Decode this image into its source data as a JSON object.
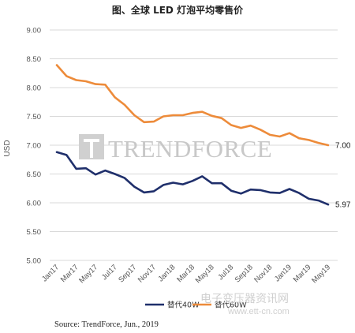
{
  "chart_data": {
    "type": "line",
    "title": "图、全球 LED 灯泡平均零售价",
    "ylabel": "USD",
    "ylim": [
      5.0,
      9.0
    ],
    "y_ticks": [
      "9.00",
      "8.50",
      "8.00",
      "7.50",
      "7.00",
      "6.50",
      "6.00",
      "5.50",
      "5.00"
    ],
    "x_tick_labels": [
      "Jan17",
      "Mar17",
      "May17",
      "Jul17",
      "Sep17",
      "Nov17",
      "Jan18",
      "Mar18",
      "May18",
      "Jul18",
      "Sep18",
      "Nov18",
      "Jan19",
      "Mar19",
      "May19"
    ],
    "n_points": 29,
    "grid": true,
    "legend_position": "bottom",
    "series": [
      {
        "name": "替代40W",
        "color": "#1f2f6b",
        "end_label": "5.97",
        "values": [
          6.88,
          6.83,
          6.59,
          6.6,
          6.49,
          6.56,
          6.5,
          6.43,
          6.28,
          6.18,
          6.2,
          6.31,
          6.35,
          6.32,
          6.38,
          6.46,
          6.34,
          6.34,
          6.21,
          6.16,
          6.23,
          6.22,
          6.18,
          6.17,
          6.24,
          6.17,
          6.07,
          6.04,
          5.97
        ]
      },
      {
        "name": "替代60W",
        "color": "#ed8b3a",
        "end_label": "7.00",
        "values": [
          8.39,
          8.2,
          8.13,
          8.11,
          8.06,
          8.05,
          7.83,
          7.7,
          7.52,
          7.4,
          7.41,
          7.5,
          7.52,
          7.52,
          7.56,
          7.58,
          7.51,
          7.47,
          7.35,
          7.3,
          7.34,
          7.27,
          7.18,
          7.15,
          7.21,
          7.12,
          7.09,
          7.04,
          7.0
        ]
      }
    ]
  },
  "watermark": {
    "brand": "TRENDFORCE",
    "site_cn": "电子变压器资讯网",
    "site_url": "www.ett-cn.com"
  },
  "source": "Source: TrendForce, Jun., 2019"
}
